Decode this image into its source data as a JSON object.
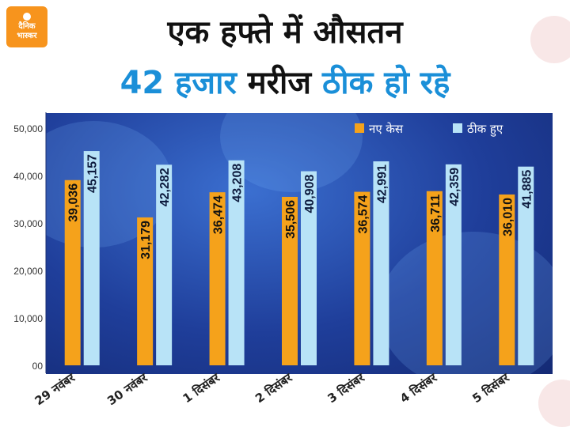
{
  "brand": {
    "line1": "दैनिक",
    "line2": "भास्कर",
    "color": "#f7941d"
  },
  "title": {
    "line1": "एक हफ्ते में औसतन",
    "line2_part1": "42 हजार",
    "line2_part2": "मरीज",
    "line2_part3": "ठीक हो रहे"
  },
  "chart_data": {
    "type": "bar",
    "categories": [
      "29 नवंबर",
      "30 नवंबर",
      "1 दिसंबर",
      "2 दिसंबर",
      "3 दिसंबर",
      "4 दिसंबर",
      "5 दिसंबर"
    ],
    "series": [
      {
        "name": "नए केस",
        "color": "#f5a21b",
        "values": [
          39036,
          31179,
          36474,
          35506,
          36574,
          36711,
          36010
        ],
        "labels": [
          "39,036",
          "31,179",
          "36,474",
          "35,506",
          "36,574",
          "36,711",
          "36,010"
        ]
      },
      {
        "name": "ठीक हुए",
        "color": "#b8e3f7",
        "values": [
          45157,
          42282,
          43208,
          40908,
          42991,
          42359,
          41885
        ],
        "labels": [
          "45,157",
          "42,282",
          "43,208",
          "40,908",
          "42,991",
          "42,359",
          "41,885"
        ]
      }
    ],
    "yticks": [
      0,
      10000,
      20000,
      30000,
      40000,
      50000
    ],
    "ytick_labels": [
      "00",
      "10,000",
      "20,000",
      "30,000",
      "40,000",
      "50,000"
    ],
    "ylim": [
      0,
      52000
    ],
    "legend_position": "top-right",
    "grid": false
  }
}
